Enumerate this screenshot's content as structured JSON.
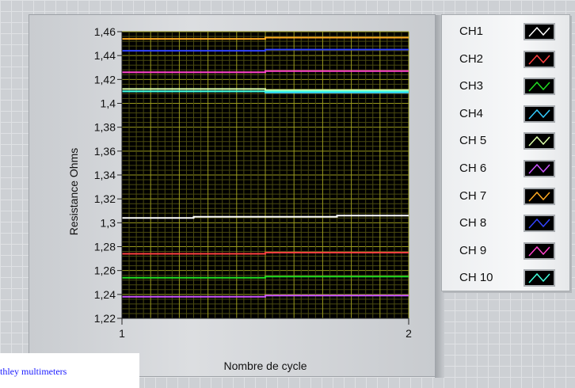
{
  "chart_data": {
    "type": "line",
    "ylabel": "Resistance Ohms",
    "xlabel": "Nombre de cycle",
    "x_ticks": [
      "1",
      "2"
    ],
    "y_ticks": [
      "1,22",
      "1,24",
      "1,26",
      "1,28",
      "1,3",
      "1,32",
      "1,34",
      "1,36",
      "1,38",
      "1,4",
      "1,42",
      "1,44",
      "1,46"
    ],
    "xlim": [
      1,
      2
    ],
    "ylim": [
      1.22,
      1.46
    ],
    "grid": true,
    "legend_placement": "right",
    "series": [
      {
        "name": "CH1",
        "color": "#ffffff",
        "x": [
          1,
          1.25,
          1.25,
          1.75,
          1.75,
          2
        ],
        "y": [
          1.304,
          1.304,
          1.305,
          1.305,
          1.306,
          1.306
        ]
      },
      {
        "name": "CH2",
        "color": "#ff4040",
        "x": [
          1,
          1.5,
          1.5,
          2
        ],
        "y": [
          1.274,
          1.274,
          1.275,
          1.275
        ]
      },
      {
        "name": "CH3",
        "color": "#22dd22",
        "x": [
          1,
          1.5,
          1.5,
          2
        ],
        "y": [
          1.254,
          1.254,
          1.255,
          1.255
        ]
      },
      {
        "name": "CH4",
        "color": "#33ccff",
        "x": [
          1,
          1.5,
          1.5,
          2
        ],
        "y": [
          1.41,
          1.41,
          1.409,
          1.409
        ]
      },
      {
        "name": "CH 5",
        "color": "#ddffaa",
        "x": [
          1,
          1.5,
          1.5,
          2
        ],
        "y": [
          1.412,
          1.412,
          1.411,
          1.411
        ]
      },
      {
        "name": "CH 6",
        "color": "#cc55ff",
        "x": [
          1,
          1.5,
          1.5,
          2
        ],
        "y": [
          1.238,
          1.238,
          1.239,
          1.239
        ]
      },
      {
        "name": "CH 7",
        "color": "#ffaa22",
        "x": [
          1,
          1.5,
          1.5,
          2
        ],
        "y": [
          1.454,
          1.454,
          1.455,
          1.455
        ]
      },
      {
        "name": "CH 8",
        "color": "#3344ff",
        "x": [
          1,
          1.5,
          1.5,
          2
        ],
        "y": [
          1.444,
          1.444,
          1.445,
          1.445
        ]
      },
      {
        "name": "CH 9",
        "color": "#ff44cc",
        "x": [
          1,
          1.5,
          1.5,
          2
        ],
        "y": [
          1.426,
          1.426,
          1.427,
          1.427
        ]
      },
      {
        "name": "CH 10",
        "color": "#44ffdd",
        "x": [
          1,
          2
        ],
        "y": [
          1.41,
          1.41
        ]
      }
    ]
  },
  "caption": "thley multimeters",
  "colors": {
    "plot_background": "#000000",
    "grid_major": "#9a9a1e",
    "grid_minor": "#4a4a10"
  }
}
